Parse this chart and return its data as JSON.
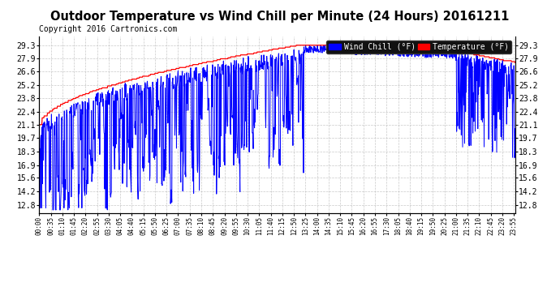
{
  "title": "Outdoor Temperature vs Wind Chill per Minute (24 Hours) 20161211",
  "copyright": "Copyright 2016 Cartronics.com",
  "legend_wind": "Wind Chill (°F)",
  "legend_temp": "Temperature (°F)",
  "yticks": [
    12.8,
    14.2,
    15.6,
    16.9,
    18.3,
    19.7,
    21.1,
    22.4,
    23.8,
    25.2,
    26.6,
    27.9,
    29.3
  ],
  "ylim": [
    12.0,
    30.2
  ],
  "bg_color": "#ffffff",
  "plot_bg": "#ffffff",
  "grid_color": "#bbbbbb",
  "temp_color": "#ff0000",
  "wind_color": "#0000ff",
  "title_fontsize": 10.5,
  "copyright_fontsize": 7
}
